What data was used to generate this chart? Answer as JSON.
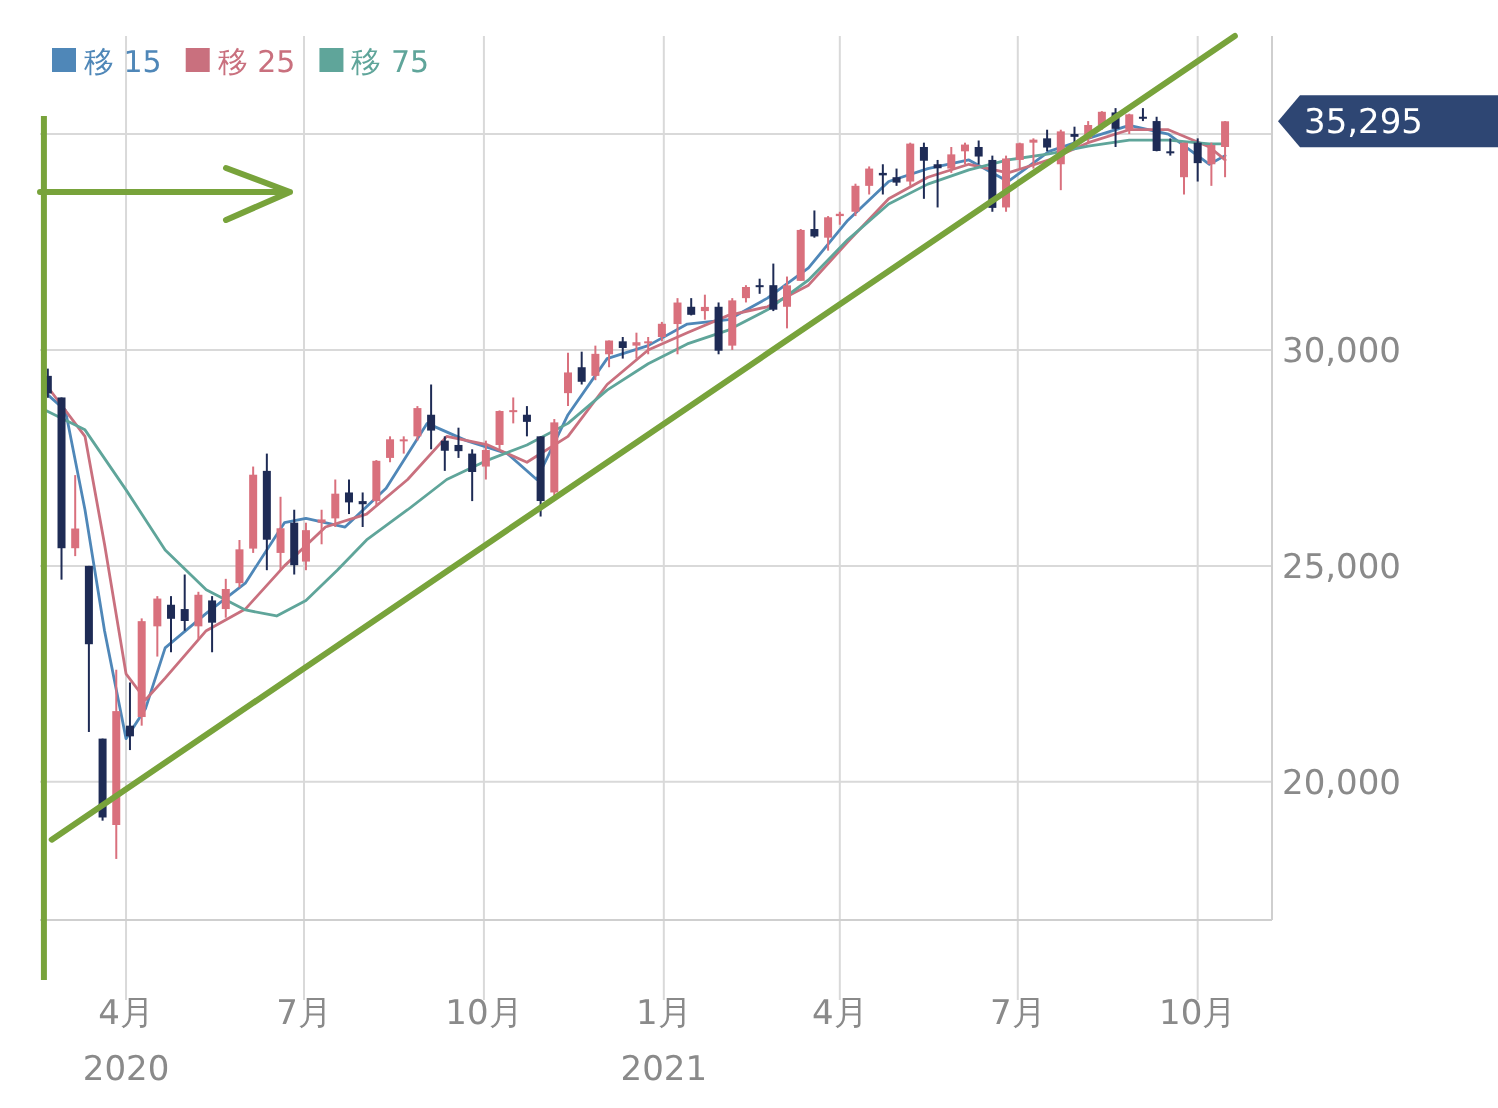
{
  "chart_data": {
    "type": "candlestick",
    "x": [
      "2020-02-21",
      "2020-02-28",
      "2020-03-06",
      "2020-03-13",
      "2020-03-20",
      "2020-03-27",
      "2020-04-03",
      "2020-04-09",
      "2020-04-17",
      "2020-04-24",
      "2020-05-01",
      "2020-05-08",
      "2020-05-15",
      "2020-05-22",
      "2020-05-29",
      "2020-06-05",
      "2020-06-12",
      "2020-06-19",
      "2020-06-26",
      "2020-07-02",
      "2020-07-10",
      "2020-07-17",
      "2020-07-24",
      "2020-07-31",
      "2020-08-07",
      "2020-08-14",
      "2020-08-21",
      "2020-08-28",
      "2020-09-04",
      "2020-09-11",
      "2020-09-18",
      "2020-09-25",
      "2020-10-02",
      "2020-10-09",
      "2020-10-16",
      "2020-10-23",
      "2020-10-30",
      "2020-11-06",
      "2020-11-13",
      "2020-11-20",
      "2020-11-27",
      "2020-12-04",
      "2020-12-11",
      "2020-12-18",
      "2020-12-24",
      "2020-12-31",
      "2021-01-08",
      "2021-01-15",
      "2021-01-22",
      "2021-01-29",
      "2021-02-05",
      "2021-02-12",
      "2021-02-19",
      "2021-02-26",
      "2021-03-05",
      "2021-03-12",
      "2021-03-19",
      "2021-03-26",
      "2021-04-01",
      "2021-04-09",
      "2021-04-16",
      "2021-04-23",
      "2021-04-30",
      "2021-05-07",
      "2021-05-14",
      "2021-05-21",
      "2021-05-28",
      "2021-06-04",
      "2021-06-11",
      "2021-06-18",
      "2021-06-25",
      "2021-07-02",
      "2021-07-09",
      "2021-07-16",
      "2021-07-23",
      "2021-07-30",
      "2021-08-06",
      "2021-08-13",
      "2021-08-20",
      "2021-08-27",
      "2021-09-03",
      "2021-09-10",
      "2021-09-17",
      "2021-09-24",
      "2021-10-01",
      "2021-10-08",
      "2021-10-15"
    ],
    "ohlc": [
      [
        29400,
        29568,
        28892,
        28992
      ],
      [
        28900,
        28900,
        24681,
        25409
      ],
      [
        25409,
        27102,
        25226,
        25865
      ],
      [
        25000,
        25000,
        21154,
        23186
      ],
      [
        21000,
        21000,
        19100,
        19174
      ],
      [
        19000,
        22595,
        18214,
        21637
      ],
      [
        21300,
        22300,
        20735,
        21053
      ],
      [
        21500,
        23784,
        21300,
        23720
      ],
      [
        23600,
        24300,
        22900,
        24243
      ],
      [
        24100,
        24300,
        23000,
        23775
      ],
      [
        24000,
        24800,
        23500,
        23724
      ],
      [
        23600,
        24400,
        23300,
        24331
      ],
      [
        24200,
        24300,
        23000,
        23685
      ],
      [
        24000,
        24700,
        23800,
        24465
      ],
      [
        24600,
        25600,
        24500,
        25383
      ],
      [
        25400,
        27300,
        25300,
        27111
      ],
      [
        27200,
        27600,
        24900,
        25606
      ],
      [
        25300,
        26600,
        24900,
        25871
      ],
      [
        26000,
        26300,
        24800,
        25016
      ],
      [
        25100,
        26000,
        24900,
        25827
      ],
      [
        26000,
        26300,
        25500,
        26075
      ],
      [
        26100,
        27000,
        25900,
        26672
      ],
      [
        26700,
        27000,
        26200,
        26470
      ],
      [
        26500,
        26700,
        25900,
        26428
      ],
      [
        26500,
        27450,
        26400,
        27433
      ],
      [
        27500,
        28000,
        27400,
        27931
      ],
      [
        27900,
        28000,
        27600,
        27930
      ],
      [
        28000,
        28700,
        27900,
        28654
      ],
      [
        28500,
        29200,
        27700,
        28133
      ],
      [
        27900,
        28000,
        27200,
        27666
      ],
      [
        27800,
        28200,
        27500,
        27657
      ],
      [
        27600,
        27700,
        26500,
        27174
      ],
      [
        27300,
        27900,
        27000,
        27683
      ],
      [
        27800,
        28600,
        27700,
        28586
      ],
      [
        28600,
        28900,
        28300,
        28606
      ],
      [
        28500,
        28700,
        28000,
        28335
      ],
      [
        28000,
        28000,
        26143,
        26502
      ],
      [
        26700,
        28400,
        26600,
        28323
      ],
      [
        29000,
        29933,
        28700,
        29479
      ],
      [
        29600,
        29960,
        29200,
        29263
      ],
      [
        29400,
        30100,
        29300,
        29910
      ],
      [
        29900,
        30220,
        29600,
        30218
      ],
      [
        30200,
        30300,
        29800,
        30046
      ],
      [
        30100,
        30400,
        29800,
        30179
      ],
      [
        30200,
        30300,
        29900,
        30200
      ],
      [
        30300,
        30650,
        30200,
        30606
      ],
      [
        30600,
        31200,
        29900,
        31098
      ],
      [
        31000,
        31200,
        30800,
        30814
      ],
      [
        30900,
        31280,
        30700,
        30997
      ],
      [
        31000,
        31100,
        29900,
        29983
      ],
      [
        30100,
        31200,
        30000,
        31148
      ],
      [
        31200,
        31500,
        31100,
        31458
      ],
      [
        31500,
        31650,
        31300,
        31494
      ],
      [
        31500,
        32000,
        30900,
        30932
      ],
      [
        31000,
        31700,
        30500,
        31496
      ],
      [
        31600,
        32800,
        31600,
        32779
      ],
      [
        32800,
        33230,
        32600,
        32628
      ],
      [
        32600,
        33100,
        32300,
        33072
      ],
      [
        33100,
        33200,
        32900,
        33153
      ],
      [
        33200,
        33850,
        33100,
        33801
      ],
      [
        33800,
        34250,
        33600,
        34200
      ],
      [
        34100,
        34300,
        33600,
        34043
      ],
      [
        34000,
        34200,
        33800,
        33875
      ],
      [
        33900,
        34800,
        33800,
        34778
      ],
      [
        34700,
        34800,
        33500,
        34382
      ],
      [
        34300,
        34400,
        33300,
        34208
      ],
      [
        34200,
        34700,
        34100,
        34529
      ],
      [
        34600,
        34800,
        34300,
        34756
      ],
      [
        34700,
        34850,
        34300,
        34479
      ],
      [
        34400,
        34500,
        33200,
        33290
      ],
      [
        33300,
        34500,
        33200,
        34433
      ],
      [
        34400,
        34800,
        34200,
        34786
      ],
      [
        34800,
        34900,
        34200,
        34870
      ],
      [
        34900,
        35100,
        34600,
        34687
      ],
      [
        34300,
        35100,
        33700,
        35061
      ],
      [
        35000,
        35170,
        34700,
        34935
      ],
      [
        34900,
        35300,
        34800,
        35209
      ],
      [
        35200,
        35530,
        35100,
        35515
      ],
      [
        35500,
        35600,
        34700,
        35120
      ],
      [
        35100,
        35470,
        35000,
        35456
      ],
      [
        35400,
        35600,
        35300,
        35370
      ],
      [
        35300,
        35400,
        34600,
        34608
      ],
      [
        34600,
        34900,
        34500,
        34584
      ],
      [
        34000,
        34800,
        33600,
        34798
      ],
      [
        34800,
        34900,
        33900,
        34326
      ],
      [
        34300,
        34800,
        33800,
        34746
      ],
      [
        34700,
        35300,
        34000,
        35295
      ]
    ],
    "series": [
      {
        "type": "line",
        "name": "移 15",
        "color": "#4f87b8",
        "x": [
          "2020-02-20",
          "2020-03-01",
          "2020-03-11",
          "2020-03-21",
          "2020-04-01",
          "2020-04-11",
          "2020-04-21",
          "2020-05-12",
          "2020-06-01",
          "2020-06-21",
          "2020-07-02",
          "2020-07-22",
          "2020-08-12",
          "2020-09-02",
          "2020-09-22",
          "2020-10-13",
          "2020-10-28",
          "2020-11-13",
          "2020-12-03",
          "2020-12-24",
          "2021-01-13",
          "2021-02-03",
          "2021-02-23",
          "2021-03-16",
          "2021-04-05",
          "2021-04-26",
          "2021-05-16",
          "2021-06-06",
          "2021-06-26",
          "2021-07-17",
          "2021-08-06",
          "2021-08-27",
          "2021-09-16",
          "2021-10-07",
          "2021-10-15"
        ],
        "values": [
          29000,
          28600,
          26300,
          23500,
          21000,
          21700,
          23100,
          23900,
          24600,
          26000,
          26100,
          25900,
          26800,
          28300,
          27900,
          27600,
          27000,
          28500,
          29800,
          30100,
          30600,
          30700,
          31200,
          31900,
          33000,
          33900,
          34200,
          34400,
          33900,
          34600,
          34900,
          35200,
          35000,
          34300,
          34500
        ]
      },
      {
        "type": "line",
        "name": "移 25",
        "color": "#c9707e",
        "x": [
          "2020-02-20",
          "2020-03-11",
          "2020-03-21",
          "2020-04-01",
          "2020-04-11",
          "2020-04-21",
          "2020-05-12",
          "2020-06-01",
          "2020-06-21",
          "2020-07-12",
          "2020-08-02",
          "2020-08-23",
          "2020-09-12",
          "2020-10-03",
          "2020-10-23",
          "2020-11-13",
          "2020-12-03",
          "2020-12-24",
          "2021-01-13",
          "2021-02-03",
          "2021-02-23",
          "2021-03-16",
          "2021-04-05",
          "2021-04-26",
          "2021-05-16",
          "2021-06-06",
          "2021-06-26",
          "2021-07-17",
          "2021-08-06",
          "2021-08-27",
          "2021-09-16",
          "2021-10-07",
          "2021-10-15"
        ],
        "values": [
          29200,
          28000,
          25500,
          22500,
          21900,
          22400,
          23500,
          24000,
          25000,
          25900,
          26200,
          27000,
          28000,
          27800,
          27400,
          28000,
          29200,
          30000,
          30400,
          30800,
          31000,
          31500,
          32500,
          33500,
          34000,
          34300,
          34100,
          34400,
          34800,
          35100,
          35100,
          34700,
          34400
        ]
      },
      {
        "type": "line",
        "name": "移 75",
        "color": "#5fa59a",
        "x": [
          "2020-02-20",
          "2020-03-11",
          "2020-04-01",
          "2020-04-21",
          "2020-05-12",
          "2020-06-01",
          "2020-06-17",
          "2020-07-02",
          "2020-07-18",
          "2020-08-02",
          "2020-08-23",
          "2020-09-12",
          "2020-10-03",
          "2020-10-23",
          "2020-11-13",
          "2020-12-03",
          "2020-12-24",
          "2021-01-13",
          "2021-02-03",
          "2021-02-23",
          "2021-03-16",
          "2021-04-05",
          "2021-04-26",
          "2021-05-16",
          "2021-06-06",
          "2021-06-26",
          "2021-07-17",
          "2021-08-06",
          "2021-08-27",
          "2021-09-16",
          "2021-10-07",
          "2021-10-15"
        ],
        "values": [
          28600,
          28150,
          26760,
          25370,
          24450,
          23980,
          23840,
          24200,
          24900,
          25600,
          26300,
          27000,
          27450,
          27800,
          28300,
          29070,
          29680,
          30140,
          30460,
          30930,
          31620,
          32550,
          33380,
          33840,
          34170,
          34400,
          34540,
          34720,
          34860,
          34860,
          34770,
          34770
        ]
      },
      {
        "type": "line",
        "color": "#78a33b",
        "x": [
          "2020-02-23",
          "2021-10-20"
        ],
        "values": [
          18660,
          37270
        ]
      }
    ],
    "xlim": [
      "2020-02-17",
      "2021-11-08"
    ],
    "ylim": [
      16800,
      37270
    ],
    "xticks": [
      {
        "value": "2020-04-01",
        "label": "4月\n2020"
      },
      {
        "value": "2020-07-01",
        "label": "7月"
      },
      {
        "value": "2020-10-01",
        "label": "10月"
      },
      {
        "value": "2021-01-01",
        "label": "1月\n2021"
      },
      {
        "value": "2021-04-01",
        "label": "4月"
      },
      {
        "value": "2021-07-01",
        "label": "7月"
      },
      {
        "value": "2021-10-01",
        "label": "10月"
      }
    ],
    "yticks": [
      {
        "value": 20000,
        "label": "20,000"
      },
      {
        "value": 25000,
        "label": "25,000"
      },
      {
        "value": 30000,
        "label": "30,000"
      },
      {
        "value": 35000,
        "label": null
      }
    ],
    "grid": true,
    "legend": "top left",
    "ref_lines": [
      {
        "axis": "x",
        "value": "2020-02-19",
        "color": "#78a33b"
      }
    ],
    "annotations": [
      {
        "text": "35,295",
        "x": "2021-10-15",
        "y": 35295
      }
    ]
  }
}
